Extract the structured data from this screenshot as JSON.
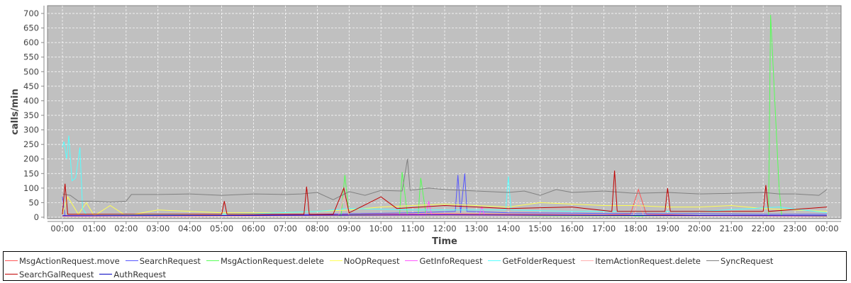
{
  "chart_data": {
    "type": "line",
    "xlabel": "Time",
    "ylabel": "calls/min",
    "ylim": [
      0,
      700
    ],
    "yticks": [
      0,
      50,
      100,
      150,
      200,
      250,
      300,
      350,
      400,
      450,
      500,
      550,
      600,
      650,
      700
    ],
    "xticks": [
      "00:00",
      "01:00",
      "02:00",
      "03:00",
      "04:00",
      "05:00",
      "06:00",
      "07:00",
      "08:00",
      "09:00",
      "10:00",
      "11:00",
      "12:00",
      "13:00",
      "14:00",
      "15:00",
      "16:00",
      "17:00",
      "18:00",
      "19:00",
      "20:00",
      "21:00",
      "22:00",
      "23:00",
      "00:00"
    ],
    "grid": true,
    "background": "#c0c0c0",
    "legend_position": "bottom",
    "series": [
      {
        "name": "MsgActionRequest.move",
        "color": "#ff5555",
        "points": [
          [
            "00:00",
            5
          ],
          [
            "03:00",
            3
          ],
          [
            "06:00",
            4
          ],
          [
            "08:00",
            8
          ],
          [
            "10:00",
            10
          ],
          [
            "12:00",
            12
          ],
          [
            "14:00",
            10
          ],
          [
            "17:00",
            8
          ],
          [
            "17:50",
            10
          ],
          [
            "18:05",
            95
          ],
          [
            "18:20",
            10
          ],
          [
            "20:00",
            6
          ],
          [
            "22:00",
            5
          ],
          [
            "24:00",
            4
          ]
        ]
      },
      {
        "name": "SearchRequest",
        "color": "#5555ff",
        "points": [
          [
            "00:00",
            70
          ],
          [
            "00:05",
            5
          ],
          [
            "02:00",
            4
          ],
          [
            "05:00",
            5
          ],
          [
            "07:00",
            8
          ],
          [
            "09:00",
            12
          ],
          [
            "11:00",
            15
          ],
          [
            "12:20",
            20
          ],
          [
            "12:25",
            145
          ],
          [
            "12:30",
            15
          ],
          [
            "12:38",
            150
          ],
          [
            "12:42",
            20
          ],
          [
            "14:00",
            15
          ],
          [
            "16:00",
            14
          ],
          [
            "18:00",
            12
          ],
          [
            "20:00",
            12
          ],
          [
            "22:00",
            10
          ],
          [
            "24:00",
            10
          ]
        ]
      },
      {
        "name": "MsgActionRequest.delete",
        "color": "#55ff55",
        "points": [
          [
            "00:00",
            2
          ],
          [
            "06:00",
            5
          ],
          [
            "08:45",
            5
          ],
          [
            "08:52",
            145
          ],
          [
            "09:00",
            8
          ],
          [
            "10:35",
            8
          ],
          [
            "10:40",
            155
          ],
          [
            "10:50",
            8
          ],
          [
            "11:10",
            8
          ],
          [
            "11:15",
            135
          ],
          [
            "11:25",
            8
          ],
          [
            "15:00",
            4
          ],
          [
            "22:10",
            5
          ],
          [
            "22:14",
            695
          ],
          [
            "22:30",
            100
          ],
          [
            "22:35",
            3
          ],
          [
            "24:00",
            2
          ]
        ]
      },
      {
        "name": "NoOpRequest",
        "color": "#ffff55",
        "points": [
          [
            "00:00",
            10
          ],
          [
            "00:10",
            70
          ],
          [
            "00:30",
            10
          ],
          [
            "00:45",
            50
          ],
          [
            "01:00",
            5
          ],
          [
            "01:30",
            40
          ],
          [
            "02:00",
            5
          ],
          [
            "03:00",
            25
          ],
          [
            "04:00",
            20
          ],
          [
            "05:00",
            15
          ],
          [
            "06:00",
            15
          ],
          [
            "07:00",
            15
          ],
          [
            "08:00",
            20
          ],
          [
            "09:00",
            25
          ],
          [
            "10:00",
            35
          ],
          [
            "11:00",
            40
          ],
          [
            "12:00",
            45
          ],
          [
            "13:00",
            40
          ],
          [
            "14:00",
            35
          ],
          [
            "15:00",
            50
          ],
          [
            "16:00",
            45
          ],
          [
            "17:00",
            40
          ],
          [
            "18:00",
            40
          ],
          [
            "19:00",
            35
          ],
          [
            "20:00",
            35
          ],
          [
            "21:00",
            40
          ],
          [
            "22:00",
            30
          ],
          [
            "23:00",
            25
          ],
          [
            "24:00",
            20
          ]
        ]
      },
      {
        "name": "GetInfoRequest",
        "color": "#ff55ff",
        "points": [
          [
            "00:00",
            3
          ],
          [
            "06:00",
            4
          ],
          [
            "10:00",
            8
          ],
          [
            "11:25",
            10
          ],
          [
            "11:30",
            55
          ],
          [
            "11:35",
            10
          ],
          [
            "13:05",
            8
          ],
          [
            "13:10",
            35
          ],
          [
            "13:15",
            8
          ],
          [
            "18:00",
            6
          ],
          [
            "24:00",
            5
          ]
        ]
      },
      {
        "name": "GetFolderRequest",
        "color": "#55ffff",
        "points": [
          [
            "00:00",
            240
          ],
          [
            "00:03",
            260
          ],
          [
            "00:08",
            200
          ],
          [
            "00:12",
            280
          ],
          [
            "00:18",
            125
          ],
          [
            "00:25",
            135
          ],
          [
            "00:33",
            240
          ],
          [
            "00:38",
            30
          ],
          [
            "00:45",
            10
          ],
          [
            "03:00",
            8
          ],
          [
            "06:00",
            12
          ],
          [
            "08:00",
            20
          ],
          [
            "09:00",
            30
          ],
          [
            "11:00",
            25
          ],
          [
            "13:55",
            25
          ],
          [
            "14:00",
            140
          ],
          [
            "14:05",
            25
          ],
          [
            "16:00",
            20
          ],
          [
            "20:00",
            20
          ],
          [
            "22:30",
            35
          ],
          [
            "24:00",
            15
          ]
        ]
      },
      {
        "name": "ItemActionRequest.delete",
        "color": "#ffafaf",
        "points": [
          [
            "00:00",
            2
          ],
          [
            "08:40",
            5
          ],
          [
            "08:50",
            70
          ],
          [
            "09:00",
            5
          ],
          [
            "17:55",
            5
          ],
          [
            "18:05",
            60
          ],
          [
            "18:15",
            5
          ],
          [
            "24:00",
            2
          ]
        ]
      },
      {
        "name": "SyncRequest",
        "color": "#808080",
        "points": [
          [
            "00:00",
            80
          ],
          [
            "00:15",
            75
          ],
          [
            "00:30",
            55
          ],
          [
            "01:00",
            55
          ],
          [
            "01:30",
            52
          ],
          [
            "02:00",
            55
          ],
          [
            "02:10",
            78
          ],
          [
            "03:00",
            78
          ],
          [
            "04:00",
            80
          ],
          [
            "05:00",
            75
          ],
          [
            "06:00",
            80
          ],
          [
            "07:00",
            78
          ],
          [
            "07:30",
            80
          ],
          [
            "08:00",
            85
          ],
          [
            "08:30",
            60
          ],
          [
            "09:00",
            88
          ],
          [
            "09:30",
            75
          ],
          [
            "10:00",
            92
          ],
          [
            "10:40",
            90
          ],
          [
            "10:50",
            200
          ],
          [
            "10:55",
            92
          ],
          [
            "11:30",
            100
          ],
          [
            "12:00",
            95
          ],
          [
            "13:00",
            90
          ],
          [
            "14:00",
            85
          ],
          [
            "14:30",
            90
          ],
          [
            "15:00",
            75
          ],
          [
            "15:30",
            95
          ],
          [
            "16:00",
            85
          ],
          [
            "17:00",
            90
          ],
          [
            "18:00",
            82
          ],
          [
            "19:00",
            85
          ],
          [
            "20:00",
            80
          ],
          [
            "21:00",
            82
          ],
          [
            "22:00",
            85
          ],
          [
            "22:30",
            80
          ],
          [
            "23:00",
            80
          ],
          [
            "23:45",
            75
          ],
          [
            "24:00",
            95
          ]
        ]
      },
      {
        "name": "SearchGalRequest",
        "color": "#c00000",
        "points": [
          [
            "00:00",
            10
          ],
          [
            "00:05",
            115
          ],
          [
            "00:10",
            10
          ],
          [
            "05:00",
            10
          ],
          [
            "05:05",
            55
          ],
          [
            "05:10",
            10
          ],
          [
            "07:35",
            10
          ],
          [
            "07:40",
            105
          ],
          [
            "07:45",
            10
          ],
          [
            "08:30",
            10
          ],
          [
            "08:50",
            100
          ],
          [
            "09:00",
            15
          ],
          [
            "10:00",
            70
          ],
          [
            "10:30",
            30
          ],
          [
            "12:00",
            40
          ],
          [
            "14:00",
            30
          ],
          [
            "16:00",
            35
          ],
          [
            "17:15",
            20
          ],
          [
            "17:20",
            160
          ],
          [
            "17:25",
            20
          ],
          [
            "18:55",
            20
          ],
          [
            "19:00",
            100
          ],
          [
            "19:05",
            20
          ],
          [
            "22:00",
            20
          ],
          [
            "22:05",
            110
          ],
          [
            "22:10",
            20
          ],
          [
            "24:00",
            35
          ]
        ]
      },
      {
        "name": "AuthRequest",
        "color": "#0000c0",
        "points": [
          [
            "00:00",
            5
          ],
          [
            "06:00",
            6
          ],
          [
            "12:00",
            8
          ],
          [
            "18:00",
            6
          ],
          [
            "24:00",
            5
          ]
        ]
      }
    ]
  }
}
